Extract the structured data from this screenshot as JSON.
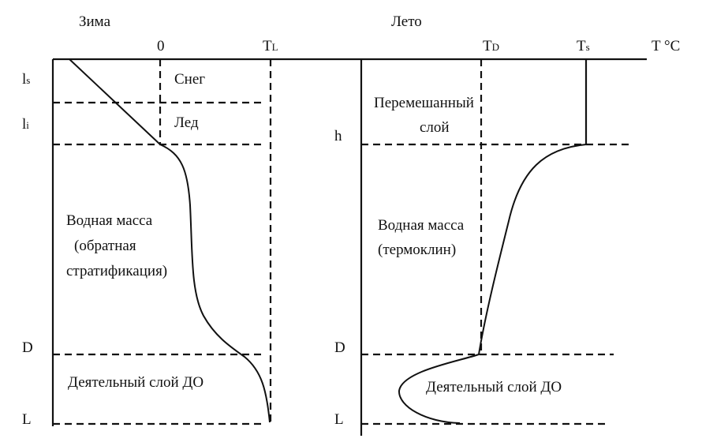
{
  "winter": {
    "title": "Зима",
    "zero": "0",
    "tl": {
      "main": "T",
      "sub": "L"
    },
    "depth_labels": {
      "ls": {
        "main": "l",
        "sub": "s"
      },
      "li": {
        "main": "l",
        "sub": "i"
      },
      "d": "D",
      "l": "L"
    },
    "zones": {
      "snow": "Снег",
      "ice": "Лед",
      "water_1": "Водная масса",
      "water_2": "(обратная",
      "water_3": "стратификация)",
      "active": "Деятельный слой ДО"
    }
  },
  "summer": {
    "title": "Лето",
    "td": {
      "main": "T",
      "sub": "D"
    },
    "ts": {
      "main": "T",
      "sub": "s"
    },
    "axis": "T °C",
    "depth_labels": {
      "h": "h",
      "d": "D",
      "l": "L"
    },
    "zones": {
      "mixed_1": "Перемешанный",
      "mixed_2": "слой",
      "water_1": "Водная масса",
      "water_2": "(термоклин)",
      "active": "Деятельный слой ДО"
    }
  }
}
